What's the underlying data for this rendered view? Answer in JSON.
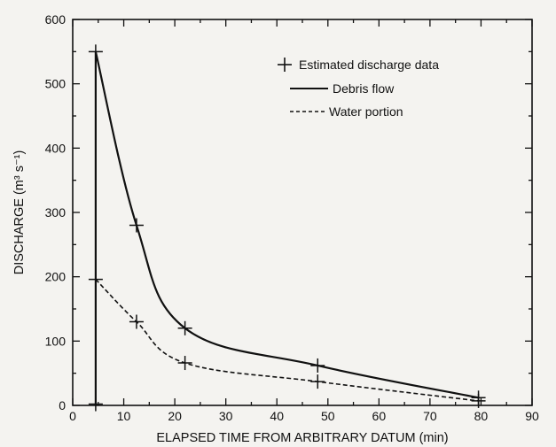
{
  "chart_data": {
    "type": "line",
    "xlabel": "ELAPSED TIME FROM ARBITRARY DATUM (min)",
    "ylabel": "DISCHARGE (m³ s⁻¹)",
    "xlim": [
      0,
      90
    ],
    "ylim": [
      0,
      600
    ],
    "xticks": [
      0,
      10,
      20,
      30,
      40,
      50,
      60,
      70,
      80,
      90
    ],
    "yticks": [
      0,
      100,
      200,
      300,
      400,
      500,
      600
    ],
    "grid": false,
    "legend_position": "top-right",
    "legend": [
      {
        "label": "Estimated discharge data",
        "style": "marker-plus"
      },
      {
        "label": "Debris flow",
        "style": "solid"
      },
      {
        "label": "Water portion",
        "style": "dashed"
      }
    ],
    "series": [
      {
        "name": "Debris flow",
        "style": "solid",
        "x": [
          4.5,
          4.5,
          12.5,
          22,
          48,
          79.5
        ],
        "y": [
          0,
          550,
          280,
          120,
          62,
          12
        ]
      },
      {
        "name": "Water portion",
        "style": "dashed",
        "x": [
          4.5,
          12.5,
          22,
          48,
          79.5
        ],
        "y": [
          196,
          130,
          66,
          37,
          7
        ]
      }
    ],
    "estimated_points": [
      {
        "x": 4.5,
        "y": 550
      },
      {
        "x": 12.5,
        "y": 280
      },
      {
        "x": 22,
        "y": 120
      },
      {
        "x": 48,
        "y": 62
      },
      {
        "x": 79.5,
        "y": 12
      },
      {
        "x": 4.5,
        "y": 196
      },
      {
        "x": 12.5,
        "y": 130
      },
      {
        "x": 22,
        "y": 66
      },
      {
        "x": 48,
        "y": 37
      },
      {
        "x": 79.5,
        "y": 7
      },
      {
        "x": 4.5,
        "y": 2
      }
    ]
  }
}
